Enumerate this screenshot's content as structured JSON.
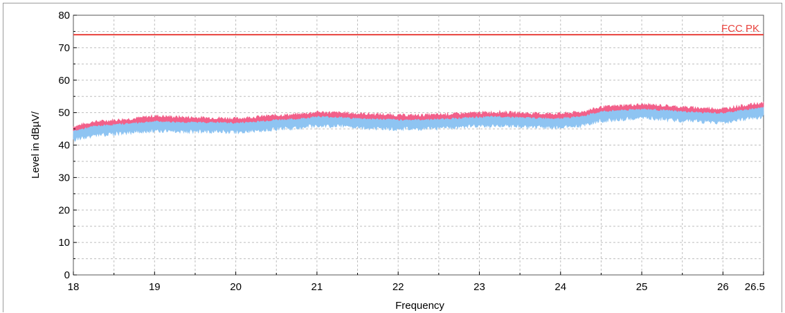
{
  "chart_data": {
    "type": "line",
    "xlabel": "Frequency",
    "ylabel": "Level in dBµV/",
    "xlim": [
      18,
      26.5
    ],
    "ylim": [
      0,
      80
    ],
    "xticks": [
      18,
      19,
      20,
      21,
      22,
      23,
      24,
      25,
      26,
      26.5
    ],
    "xtick_labels": [
      "18",
      "19",
      "20",
      "21",
      "22",
      "23",
      "24",
      "25",
      "26",
      "26.5"
    ],
    "yticks": [
      0,
      10,
      20,
      30,
      40,
      50,
      60,
      70,
      80
    ],
    "ytick_labels": [
      "0",
      "10",
      "20",
      "30",
      "40",
      "50",
      "60",
      "70",
      "80"
    ],
    "grid": true,
    "limit_line": {
      "name": "FCC PK",
      "value": 74,
      "color": "#e8413c"
    },
    "series": [
      {
        "role": "peak-trace",
        "color": "#f2608a",
        "x": [
          18.0,
          18.25,
          18.5,
          18.75,
          19.0,
          19.25,
          19.5,
          19.75,
          20.0,
          20.25,
          20.5,
          20.75,
          21.0,
          21.25,
          21.5,
          21.75,
          22.0,
          22.25,
          22.5,
          22.75,
          23.0,
          23.25,
          23.5,
          23.75,
          24.0,
          24.25,
          24.5,
          24.75,
          25.0,
          25.25,
          25.5,
          25.75,
          26.0,
          26.25,
          26.5
        ],
        "y": [
          44.5,
          46.0,
          46.5,
          47.0,
          47.8,
          47.5,
          47.3,
          47.2,
          47.0,
          47.5,
          48.0,
          48.2,
          49.0,
          48.8,
          48.5,
          48.3,
          48.0,
          48.0,
          48.2,
          48.5,
          48.8,
          49.0,
          48.7,
          48.5,
          48.5,
          49.0,
          50.5,
          51.0,
          51.3,
          51.0,
          50.5,
          50.2,
          50.0,
          51.0,
          51.8
        ]
      },
      {
        "role": "average-trace",
        "color": "#8ec4f2",
        "x": [
          18.0,
          18.25,
          18.5,
          18.75,
          19.0,
          19.25,
          19.5,
          19.75,
          20.0,
          20.25,
          20.5,
          20.75,
          21.0,
          21.25,
          21.5,
          21.75,
          22.0,
          22.25,
          22.5,
          22.75,
          23.0,
          23.25,
          23.5,
          23.75,
          24.0,
          24.25,
          24.5,
          24.75,
          25.0,
          25.25,
          25.5,
          25.75,
          26.0,
          26.25,
          26.5
        ],
        "y": [
          43.5,
          45.0,
          45.5,
          46.0,
          46.5,
          46.3,
          46.2,
          46.2,
          46.0,
          46.4,
          47.0,
          47.2,
          48.0,
          47.8,
          47.4,
          47.2,
          47.0,
          47.0,
          47.2,
          47.5,
          47.8,
          48.0,
          47.7,
          47.5,
          47.5,
          48.0,
          49.5,
          50.0,
          50.3,
          50.0,
          49.5,
          49.2,
          49.0,
          50.0,
          50.8
        ]
      }
    ]
  }
}
